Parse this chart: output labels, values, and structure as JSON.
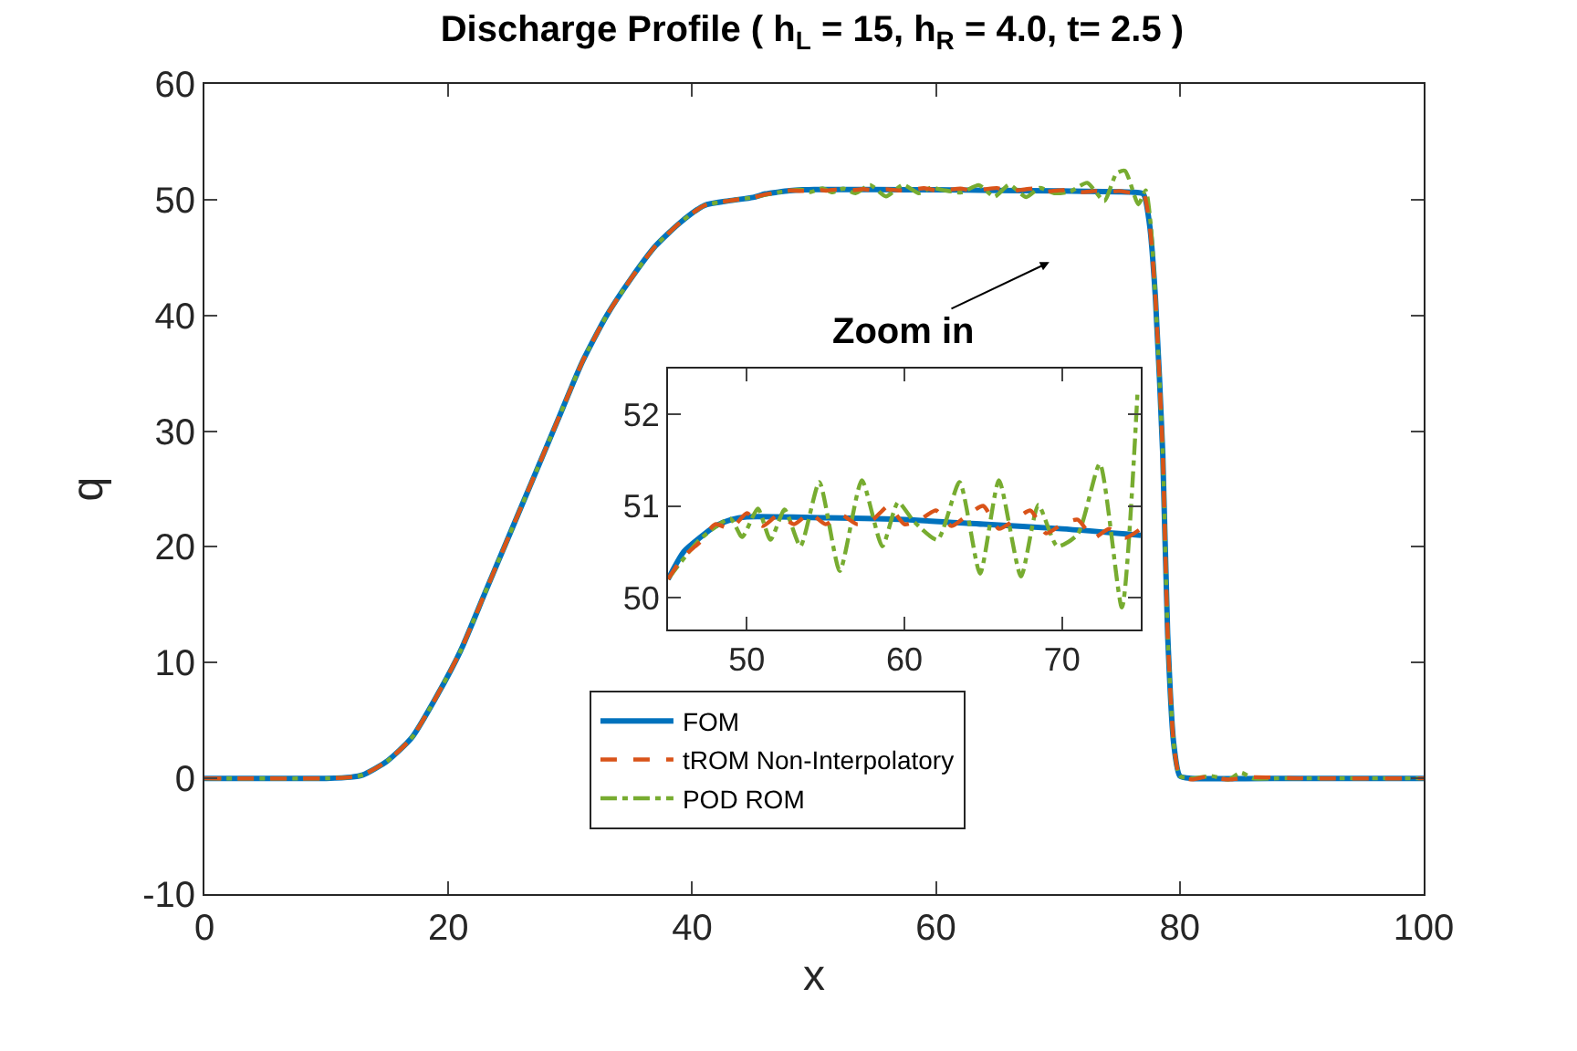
{
  "chart_data": [
    {
      "type": "line",
      "title": "Discharge Profile ( h$_{L}$ = 15, h$_{R}$ = 4.0, t= 2.5 )",
      "xlabel": "x",
      "ylabel": "q",
      "xlim": [
        0,
        100
      ],
      "xticks": [
        0,
        20,
        40,
        60,
        80,
        100
      ],
      "ylim": [
        -10,
        60
      ],
      "yticks": [
        -10,
        0,
        10,
        20,
        30,
        40,
        50,
        60
      ],
      "grid": false,
      "legend": "bottom",
      "annotations": [
        "Zoom in"
      ],
      "series": [
        {
          "name": "FOM",
          "color": "#0072bd",
          "line_style": "solid",
          "x": [
            0,
            10,
            12,
            13,
            15,
            17,
            19,
            21,
            23,
            25,
            27,
            29,
            31,
            33,
            35,
            37,
            39,
            41,
            43,
            45,
            46,
            47,
            48,
            49,
            50,
            55,
            60,
            65,
            70,
            75,
            76,
            77,
            77.5,
            78,
            78.6,
            79,
            79.5,
            80,
            81,
            90,
            100
          ],
          "values": [
            0,
            0,
            0.1,
            0.3,
            1.5,
            3.5,
            7,
            11,
            16,
            21,
            26,
            31,
            36,
            40,
            43.2,
            46,
            48,
            49.5,
            49.9,
            50.2,
            50.5,
            50.65,
            50.78,
            50.85,
            50.88,
            50.87,
            50.85,
            50.8,
            50.75,
            50.68,
            50.65,
            50.5,
            48,
            41.5,
            28,
            12.5,
            3,
            0.2,
            0,
            0,
            0
          ]
        },
        {
          "name": "tROM Non-Interpolatory",
          "color": "#d95319",
          "line_style": "dashed",
          "x": [
            0,
            10,
            12,
            13,
            15,
            17,
            19,
            21,
            23,
            25,
            27,
            29,
            31,
            33,
            35,
            37,
            39,
            41,
            43,
            45,
            46,
            47,
            48,
            49,
            50,
            51,
            52,
            53,
            54,
            55,
            56,
            57,
            58,
            59,
            60,
            61,
            62,
            63,
            64,
            65,
            66,
            67,
            68,
            69,
            70,
            71,
            72,
            73,
            74,
            75,
            76,
            77,
            77.5,
            78,
            78.6,
            79,
            79.5,
            80,
            81,
            82,
            84,
            86,
            90,
            100
          ],
          "values": [
            0,
            0,
            0.1,
            0.3,
            1.5,
            3.5,
            7,
            11,
            16,
            21,
            26,
            31,
            36,
            40,
            43.2,
            46,
            48,
            49.5,
            49.9,
            50.2,
            50.45,
            50.6,
            50.8,
            50.75,
            50.92,
            50.78,
            50.9,
            50.8,
            50.92,
            50.8,
            50.9,
            50.8,
            50.85,
            51.0,
            50.8,
            50.85,
            50.95,
            50.78,
            50.9,
            51.0,
            50.75,
            50.85,
            50.95,
            50.7,
            50.8,
            50.85,
            50.65,
            50.75,
            50.65,
            50.75,
            50.6,
            50.5,
            48,
            41.5,
            28,
            12.5,
            3,
            0.2,
            -0.1,
            0.1,
            -0.1,
            0.1,
            0,
            0
          ]
        },
        {
          "name": "POD ROM",
          "color": "#77ac30",
          "line_style": "dashdot",
          "x": [
            0,
            10,
            12,
            13,
            15,
            17,
            19,
            21,
            23,
            25,
            27,
            29,
            31,
            33,
            35,
            37,
            39,
            41,
            43,
            45,
            47,
            48.96,
            49.7,
            50.7,
            51.5,
            52.4,
            53.4,
            54.6,
            55.9,
            57.3,
            58.6,
            59.6,
            60.6,
            62.1,
            63.5,
            64.8,
            66,
            67.4,
            68.5,
            69.7,
            71,
            72.4,
            73.8,
            74.8,
            75.5,
            76.6,
            77.2,
            77.6,
            78,
            78.6,
            79,
            79.5,
            80,
            81,
            82.6,
            84,
            85,
            86,
            88,
            90,
            100
          ],
          "values": [
            0,
            0,
            0.1,
            0.3,
            1.5,
            3.5,
            7,
            11,
            16,
            21,
            26,
            31,
            36,
            40,
            43.2,
            46,
            48,
            49.5,
            49.9,
            50.2,
            50.63,
            50.86,
            50.66,
            50.97,
            50.63,
            50.96,
            50.56,
            51.26,
            50.29,
            51.28,
            50.56,
            51.04,
            50.83,
            50.63,
            51.26,
            50.26,
            51.28,
            50.23,
            51.01,
            50.56,
            50.69,
            51.46,
            49.89,
            52.26,
            52.5,
            49.6,
            50.8,
            48,
            41.5,
            28,
            12.5,
            3,
            0.2,
            0,
            0.2,
            -0.1,
            0.5,
            0,
            0,
            0,
            0
          ]
        }
      ]
    },
    {
      "type": "line",
      "xlim": [
        45,
        75
      ],
      "xticks": [
        50,
        60,
        70
      ],
      "ylim": [
        49.65,
        52.5
      ],
      "yticks": [
        50,
        51,
        52
      ],
      "grid": false,
      "series": [
        {
          "color": "#0072bd",
          "line_style": "solid",
          "x": [
            45,
            46,
            47,
            48,
            49,
            50,
            55,
            60,
            65,
            70,
            75
          ],
          "values": [
            50.2,
            50.5,
            50.65,
            50.78,
            50.85,
            50.88,
            50.87,
            50.85,
            50.8,
            50.75,
            50.68
          ]
        },
        {
          "color": "#d95319",
          "line_style": "dashed",
          "x": [
            45,
            46,
            47,
            48,
            49,
            50,
            51,
            52,
            53,
            54,
            55,
            56,
            57,
            58,
            59,
            60,
            61,
            62,
            63,
            64,
            65,
            66,
            67,
            68,
            69,
            70,
            71,
            72,
            73,
            74,
            75
          ],
          "values": [
            50.2,
            50.45,
            50.6,
            50.8,
            50.75,
            50.92,
            50.78,
            50.9,
            50.8,
            50.92,
            50.8,
            50.9,
            50.8,
            50.85,
            51.0,
            50.8,
            50.85,
            50.95,
            50.78,
            50.9,
            51.0,
            50.75,
            50.85,
            50.95,
            50.7,
            50.8,
            50.85,
            50.65,
            50.75,
            50.65,
            50.75
          ]
        },
        {
          "color": "#77ac30",
          "line_style": "dashdot",
          "x": [
            45,
            47,
            48.96,
            49.7,
            50.7,
            51.5,
            52.4,
            53.4,
            54.6,
            55.9,
            57.3,
            58.6,
            59.6,
            60.6,
            62.1,
            63.5,
            64.8,
            66,
            67.4,
            68.5,
            69.7,
            71,
            72.4,
            73.8,
            74.8
          ],
          "values": [
            50.2,
            50.63,
            50.86,
            50.66,
            50.97,
            50.63,
            50.96,
            50.56,
            51.26,
            50.29,
            51.28,
            50.56,
            51.04,
            50.83,
            50.63,
            51.26,
            50.26,
            51.28,
            50.23,
            51.01,
            50.56,
            50.69,
            51.46,
            49.89,
            52.26
          ]
        }
      ]
    }
  ]
}
